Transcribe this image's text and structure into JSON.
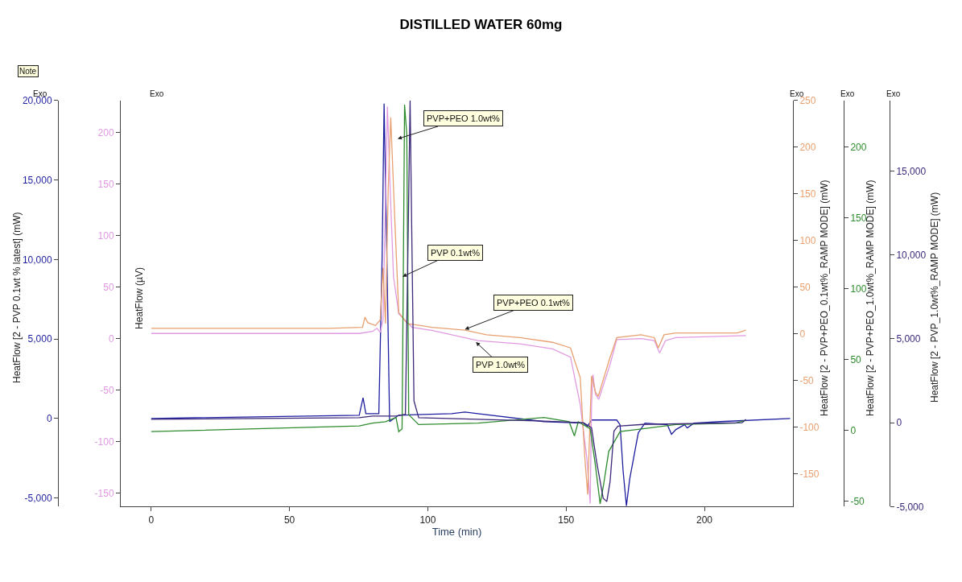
{
  "chart_data": [
    {
      "type": "line",
      "title": "DISTILLED WATER 60mg",
      "xlabel": "Time (min)",
      "ylabel": "HeatFlow [2 - PVP 0.1wt % latest] (mW)",
      "y2label": "HeatFlow (µV)",
      "y3label": "HeatFlow [2 - PVP+PEO_0.1wt%_RAMP MODE] (mW)",
      "xlim": [
        -11,
        232
      ],
      "xticks": [
        0,
        50,
        100,
        150,
        200
      ],
      "ylim": [
        -5550,
        20000
      ],
      "yticks": [
        {
          "value": -5000,
          "label": "-5,000"
        },
        0,
        {
          "value": 5000,
          "label": "5,000"
        },
        {
          "value": 10000,
          "label": "10,000"
        },
        {
          "value": 15000,
          "label": "15,000"
        },
        {
          "value": 20000,
          "label": "20,000"
        }
      ],
      "y2lim": [
        -163,
        231
      ],
      "y2ticks": [
        -150,
        -100,
        -50,
        0,
        50,
        100,
        150,
        200
      ],
      "y3lim": [
        -185,
        250
      ],
      "y3ticks": [
        -150,
        -100,
        -50,
        0,
        50,
        100,
        150,
        200,
        250
      ],
      "series": [
        {
          "axis": "y",
          "color": "#1e1ea0",
          "x": [
            0,
            75.2,
            76.6,
            77.6,
            82.3,
            83.5,
            84.2,
            85.2,
            86.2,
            89.5,
            108.6,
            113.4,
            118.1,
            142,
            156.3,
            157.7,
            159.2,
            168.3,
            169.5,
            170.6,
            171.8,
            173,
            176.1,
            178.5,
            186.6,
            188.1,
            189.7,
            192.8,
            193.8,
            196.2,
            205.7,
            231
          ],
          "values": [
            0,
            200,
            1300,
            300,
            300,
            10200,
            19800,
            10200,
            -200,
            200,
            300,
            400,
            300,
            -200,
            -300,
            -500,
            -100,
            -100,
            -400,
            -3300,
            -5500,
            -3800,
            -900,
            -300,
            -400,
            -1000,
            -700,
            -400,
            -600,
            -300,
            -200,
            0
          ]
        },
        {
          "axis": "y2",
          "color": "#e09ae0",
          "x": [
            0,
            75.2,
            80,
            81.6,
            82.8,
            83.8,
            84.5,
            85.4,
            86.4,
            87.6,
            89.5,
            94.3,
            101.4,
            118.1,
            133.2,
            145.1,
            151.6,
            155.1,
            157.5,
            158.7,
            159.2,
            159.7,
            160.6,
            161.8,
            165.9,
            168.3,
            177.1,
            181.9,
            183.8,
            185.9,
            189.7,
            215
          ],
          "values": [
            5,
            5,
            7,
            10,
            6,
            18,
            106,
            225,
            145,
            60,
            24,
            11,
            8,
            -2,
            -5,
            -10,
            -18,
            -64,
            -116,
            -160,
            -64,
            -35,
            -54,
            -59,
            -25,
            -1,
            0,
            -2,
            -14,
            -2,
            1,
            3
          ]
        },
        {
          "axis": "y3",
          "color": "#e8a070",
          "x": [
            0,
            64.4,
            76.4,
            77.3,
            78.3,
            81.1,
            82.8,
            83.8,
            84.7,
            85.7,
            86.6,
            88.1,
            89.5,
            92.6,
            97.4,
            101.4,
            113.4,
            121.2,
            133.2,
            145.1,
            151.6,
            155.1,
            156.8,
            157.8,
            158.5,
            159.2,
            160.6,
            161.6,
            165.9,
            168.3,
            177.1,
            181.9,
            183.3,
            185.4,
            189.7,
            211.9,
            215
          ],
          "values": [
            6,
            6,
            7,
            18,
            12,
            9,
            15,
            71,
            11,
            156,
            232,
            120,
            23,
            11,
            9,
            7,
            4,
            -1,
            -4,
            -9,
            -15,
            -47,
            -134,
            -172,
            -105,
            -45,
            -62,
            -67,
            -25,
            -4,
            -1,
            -4,
            -15,
            -1,
            1,
            1,
            4
          ]
        }
      ],
      "annotations": [
        "PVP+PEO 1.0wt%",
        "PVP 0.1wt%",
        {
          "text": "PVP+PEO 0.1wt%",
          "x": 113.4,
          "y": 5600
        },
        {
          "text": "PVP 1.0wt%",
          "x": 117.4,
          "y": 4800
        },
        "Note",
        "Exo",
        "Exo",
        "Exo",
        "Exo",
        "Exo"
      ]
    },
    {
      "type": "line",
      "tick_labels": "y",
      "ylabel": "HeatFlow [2 - PVP+PEO_1.0wt%_RAMP MODE] (mW)",
      "y2label": "HeatFlow [2 - PVP_1.0wt%_RAMP MODE] (mW)",
      "xlim": [
        -11,
        232
      ],
      "ylim": [
        -54,
        233
      ],
      "yticks": [
        -50,
        0,
        50,
        100,
        150,
        200
      ],
      "y2lim": [
        -5000,
        19200
      ],
      "y2ticks": [
        {
          "value": -5000,
          "label": "-5,000"
        },
        0,
        {
          "value": 5000,
          "label": "5,000"
        },
        {
          "value": 10000,
          "label": "10,000"
        },
        {
          "value": 15000,
          "label": "15,000"
        }
      ],
      "series": [
        {
          "axis": "y",
          "color": "#2e8b2e",
          "x": [
            0,
            75.2,
            80,
            84.7,
            88.5,
            89.5,
            90.7,
            91.2,
            91.6,
            92.4,
            93.1,
            96.7,
            118.1,
            142,
            151.1,
            153,
            154.4,
            158.7,
            160.6,
            162.3,
            163.5,
            165.4,
            169.5,
            177.8,
            189.7,
            211.2,
            215
          ],
          "values": [
            -1,
            3,
            5,
            6,
            9,
            -1,
            1,
            123,
            230,
            209,
            11,
            4,
            5,
            9,
            6,
            -4,
            6,
            1,
            -25,
            -52,
            -39,
            -15,
            -1,
            1,
            4,
            5,
            7
          ]
        },
        {
          "axis": "y2",
          "color": "#3c2878",
          "x": [
            0,
            75.2,
            80,
            88.5,
            91.9,
            92.8,
            93.6,
            94.3,
            95,
            96.7,
            118.1,
            142,
            156.3,
            159.2,
            161,
            163.4,
            164.7,
            165.9,
            167.3,
            168.7,
            177.8,
            213.6,
            215
          ],
          "values": [
            200,
            300,
            400,
            400,
            500,
            10100,
            19200,
            10100,
            1300,
            300,
            200,
            100,
            0,
            -300,
            -2300,
            -4500,
            -4700,
            -3500,
            -500,
            -200,
            -100,
            0,
            200
          ]
        }
      ]
    }
  ]
}
